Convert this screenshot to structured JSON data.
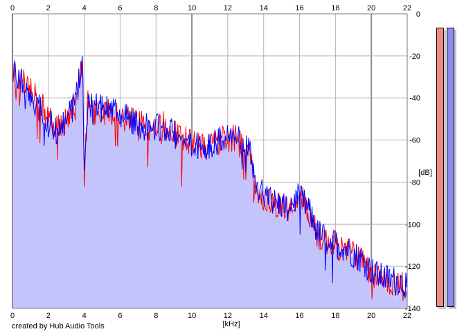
{
  "credit": "created by Hub Audio Tools",
  "meters": [
    {
      "name": "left-channel-meter",
      "color": "#f28a84",
      "level": 1.0
    },
    {
      "name": "right-channel-meter",
      "color": "#8a8cf2",
      "level": 1.0
    }
  ],
  "chart_data": {
    "type": "line",
    "title": "",
    "xlabel": "[kHz]",
    "ylabel": "[dB]",
    "xlim": [
      0,
      22
    ],
    "ylim": [
      -140,
      0
    ],
    "x_ticks": [
      "0",
      "2",
      "4",
      "6",
      "8",
      "10",
      "12",
      "14",
      "16",
      "18",
      "20",
      "22"
    ],
    "y_ticks": [
      "0",
      "-20",
      "-40",
      "-60",
      "-80",
      "-100",
      "-120",
      "-140"
    ],
    "grid": true,
    "fill_color": "#c4c4fd",
    "x": [
      0,
      0.5,
      1,
      1.5,
      2,
      2.5,
      3,
      3.5,
      3.8,
      3.9,
      4,
      4.2,
      4.5,
      5,
      5.5,
      6,
      6.5,
      7,
      7.5,
      8,
      8.5,
      9,
      9.5,
      10,
      10.5,
      11,
      11.5,
      12,
      12.5,
      13,
      13.3,
      13.5,
      13.8,
      14,
      14.5,
      15,
      15.5,
      16,
      16.5,
      17,
      17.5,
      18,
      18.5,
      19,
      19.5,
      20,
      20.5,
      21,
      21.5,
      22
    ],
    "series": [
      {
        "name": "",
        "color": "#ff0000",
        "values": [
          -28,
          -33,
          -35,
          -42,
          -50,
          -53,
          -52,
          -44,
          -30,
          -22,
          -80,
          -38,
          -46,
          -48,
          -47,
          -48,
          -50,
          -52,
          -55,
          -54,
          -53,
          -56,
          -60,
          -61,
          -62,
          -64,
          -60,
          -59,
          -60,
          -65,
          -70,
          -82,
          -85,
          -88,
          -90,
          -92,
          -92,
          -86,
          -94,
          -106,
          -108,
          -110,
          -112,
          -113,
          -118,
          -123,
          -126,
          -127,
          -128,
          -130
        ]
      },
      {
        "name": "",
        "color": "#0000ff",
        "values": [
          -24,
          -32,
          -38,
          -45,
          -52,
          -55,
          -52,
          -42,
          -27,
          -19,
          -78,
          -40,
          -44,
          -45,
          -46,
          -47,
          -50,
          -52,
          -54,
          -53,
          -55,
          -57,
          -61,
          -62,
          -63,
          -62,
          -61,
          -58,
          -59,
          -63,
          -68,
          -80,
          -84,
          -86,
          -89,
          -91,
          -90,
          -87,
          -93,
          -104,
          -107,
          -109,
          -111,
          -114,
          -117,
          -122,
          -125,
          -126,
          -127,
          -129
        ]
      }
    ]
  }
}
